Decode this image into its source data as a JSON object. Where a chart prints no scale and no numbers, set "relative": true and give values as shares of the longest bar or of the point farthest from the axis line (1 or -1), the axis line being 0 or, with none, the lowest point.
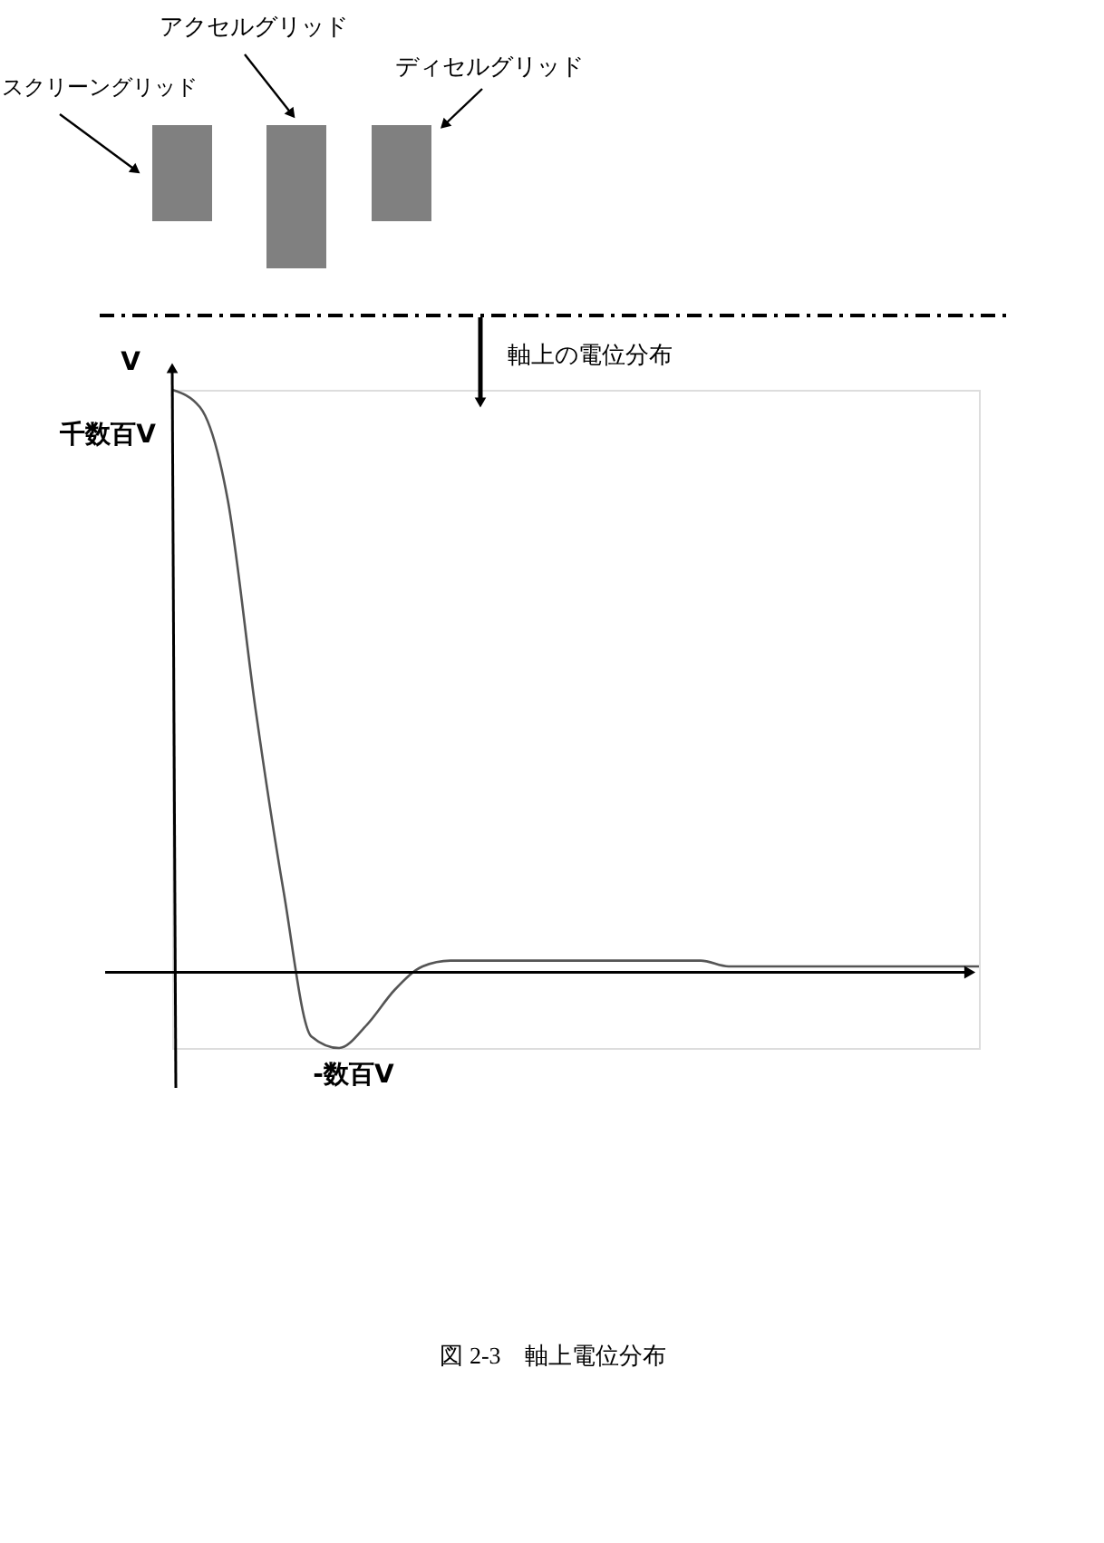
{
  "chart_data": {
    "type": "line",
    "relative": true,
    "ylabel": "V",
    "categories": [
      null,
      null,
      null,
      null,
      null,
      null,
      null,
      null,
      null,
      null,
      null,
      null,
      null,
      null,
      null,
      null,
      null,
      null,
      null,
      null,
      null,
      null,
      null,
      null,
      null,
      null,
      null,
      null,
      null,
      null
    ],
    "series": [
      {
        "color": "#555555",
        "values": [
          1.0,
          0.97,
          0.81,
          0.45,
          0.14,
          -0.11,
          -0.13,
          -0.09,
          -0.03,
          0.01,
          0.02,
          0.02,
          0.02,
          0.02,
          0.02,
          0.02,
          0.02,
          0.02,
          0.02,
          0.02,
          0.01,
          0.01,
          0.01,
          0.01,
          0.01,
          0.01,
          0.01,
          0.01,
          0.01,
          0.01
        ]
      }
    ],
    "annotations": [
      "スクリーングリッド",
      "アクセルグリッド",
      "ディセルグリッド",
      "軸上の電位分布",
      "図 2-3　軸上電位分布",
      "千数百V",
      {
        "text": "-数百V",
        "y": -0.13
      }
    ]
  }
}
